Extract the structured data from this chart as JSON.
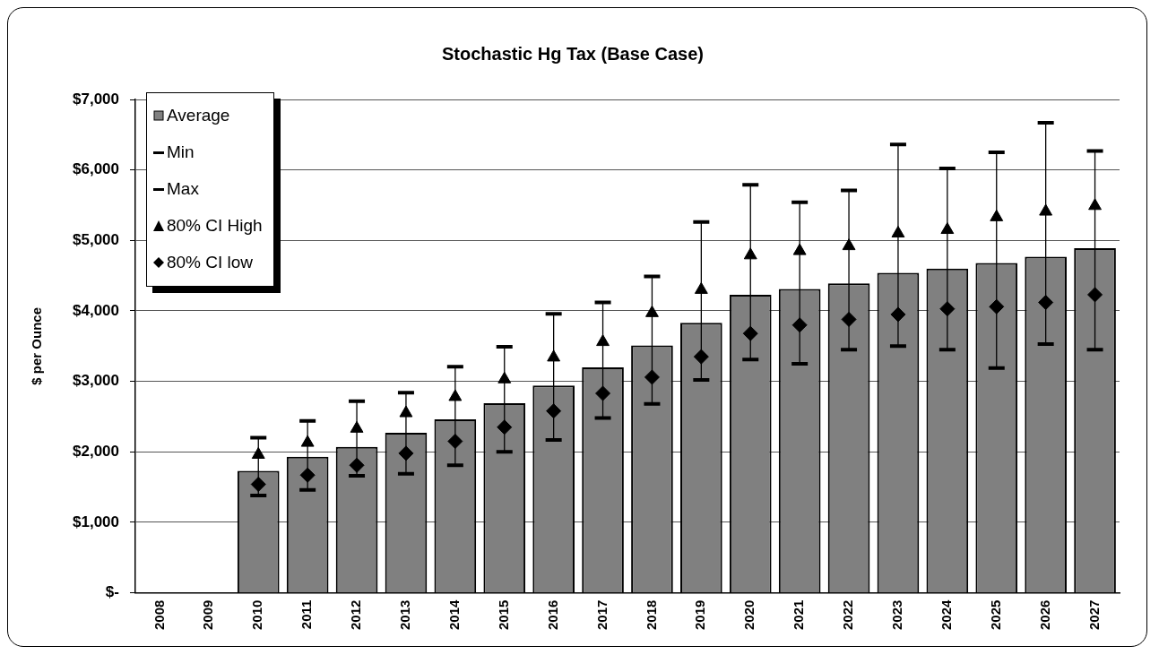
{
  "chart_data": {
    "type": "bar",
    "title": "Stochastic Hg Tax (Base Case)",
    "ylabel": "$ per Ounce",
    "categories": [
      "2008",
      "2009",
      "2010",
      "2011",
      "2012",
      "2013",
      "2014",
      "2015",
      "2016",
      "2017",
      "2018",
      "2019",
      "2020",
      "2021",
      "2022",
      "2023",
      "2024",
      "2025",
      "2026",
      "2027"
    ],
    "series": [
      {
        "name": "Average",
        "color": "#808080",
        "values": [
          null,
          null,
          1730,
          1930,
          2070,
          2270,
          2460,
          2690,
          2940,
          3200,
          3510,
          3830,
          4230,
          4310,
          4390,
          4540,
          4600,
          4680,
          4770,
          4890
        ],
        "errors": [
          null,
          null,
          [
            1380,
            2200
          ],
          [
            1460,
            2440
          ],
          [
            1660,
            2720
          ],
          [
            1690,
            2840
          ],
          [
            1810,
            3210
          ],
          [
            2000,
            3490
          ],
          [
            2170,
            3960
          ],
          [
            2480,
            4120
          ],
          [
            2680,
            4490
          ],
          [
            3020,
            5260
          ],
          [
            3310,
            5790
          ],
          [
            3250,
            5540
          ],
          [
            3450,
            5710
          ],
          [
            3500,
            6360
          ],
          [
            3450,
            6020
          ],
          [
            3190,
            6250
          ],
          [
            3530,
            6670
          ],
          [
            3450,
            6270
          ]
        ]
      },
      {
        "name": "80% CI High",
        "type": "scatter",
        "marker": "triangle",
        "color": "#000000",
        "values": [
          null,
          null,
          1960,
          2130,
          2330,
          2550,
          2780,
          3030,
          3340,
          3560,
          3970,
          4300,
          4790,
          4850,
          4920,
          5100,
          5150,
          5330,
          5410,
          5490
        ]
      },
      {
        "name": "80% CI low",
        "type": "scatter",
        "marker": "diamond",
        "color": "#000000",
        "values": [
          null,
          null,
          1540,
          1670,
          1810,
          1980,
          2150,
          2350,
          2580,
          2830,
          3060,
          3350,
          3680,
          3800,
          3880,
          3950,
          4030,
          4060,
          4120,
          4230
        ]
      }
    ],
    "annotations": [
      "Min",
      "Max"
    ],
    "ylim": [
      0,
      7000
    ],
    "yticks": [
      {
        "value": 0,
        "label": "$-"
      },
      {
        "value": 1000,
        "label": "$1,000"
      },
      {
        "value": 2000,
        "label": "$2,000"
      },
      {
        "value": 3000,
        "label": "$3,000"
      },
      {
        "value": 4000,
        "label": "$4,000"
      },
      {
        "value": 5000,
        "label": "$5,000"
      },
      {
        "value": 6000,
        "label": "$6,000"
      },
      {
        "value": 7000,
        "label": "$7,000"
      }
    ],
    "grid": "y",
    "legend": "top left"
  }
}
